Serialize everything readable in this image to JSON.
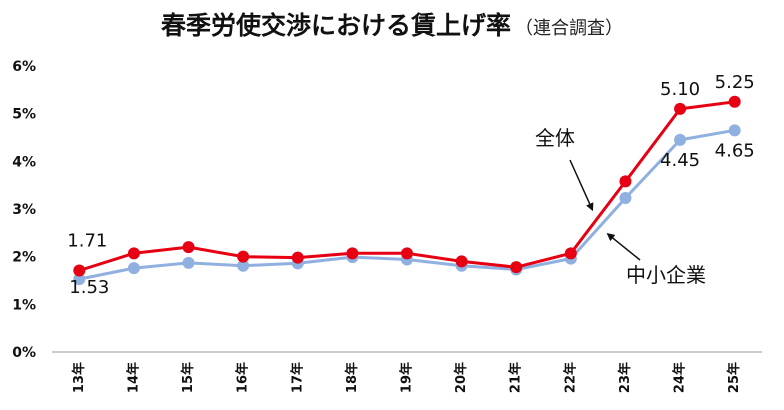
{
  "chart_data": {
    "type": "line",
    "title": "春季労使交渉における賃上げ率",
    "subtitle": "（連合調査）",
    "x": [
      "13年",
      "14年",
      "15年",
      "16年",
      "17年",
      "18年",
      "19年",
      "20年",
      "21年",
      "22年",
      "23年",
      "24年",
      "25年"
    ],
    "ylim": [
      0,
      6
    ],
    "yticks": [
      "0%",
      "1%",
      "2%",
      "3%",
      "4%",
      "5%",
      "6%"
    ],
    "grid": false,
    "series": [
      {
        "name": "全体",
        "color": "#e60012",
        "values": [
          1.71,
          2.07,
          2.2,
          2.0,
          1.98,
          2.07,
          2.07,
          1.9,
          1.78,
          2.07,
          3.58,
          5.1,
          5.25
        ]
      },
      {
        "name": "中小企業",
        "color": "#8fb0e0",
        "values": [
          1.53,
          1.76,
          1.87,
          1.81,
          1.86,
          1.99,
          1.94,
          1.81,
          1.73,
          1.96,
          3.23,
          4.45,
          4.65
        ]
      }
    ],
    "data_labels": [
      {
        "series": 0,
        "index": 0,
        "text": "1.71"
      },
      {
        "series": 1,
        "index": 0,
        "text": "1.53"
      },
      {
        "series": 0,
        "index": 11,
        "text": "5.10"
      },
      {
        "series": 0,
        "index": 12,
        "text": "5.25"
      },
      {
        "series": 1,
        "index": 11,
        "text": "4.45"
      },
      {
        "series": 1,
        "index": 12,
        "text": "4.65"
      }
    ],
    "annotations": [
      {
        "series": 0,
        "text": "全体"
      },
      {
        "series": 1,
        "text": "中小企業"
      }
    ]
  }
}
